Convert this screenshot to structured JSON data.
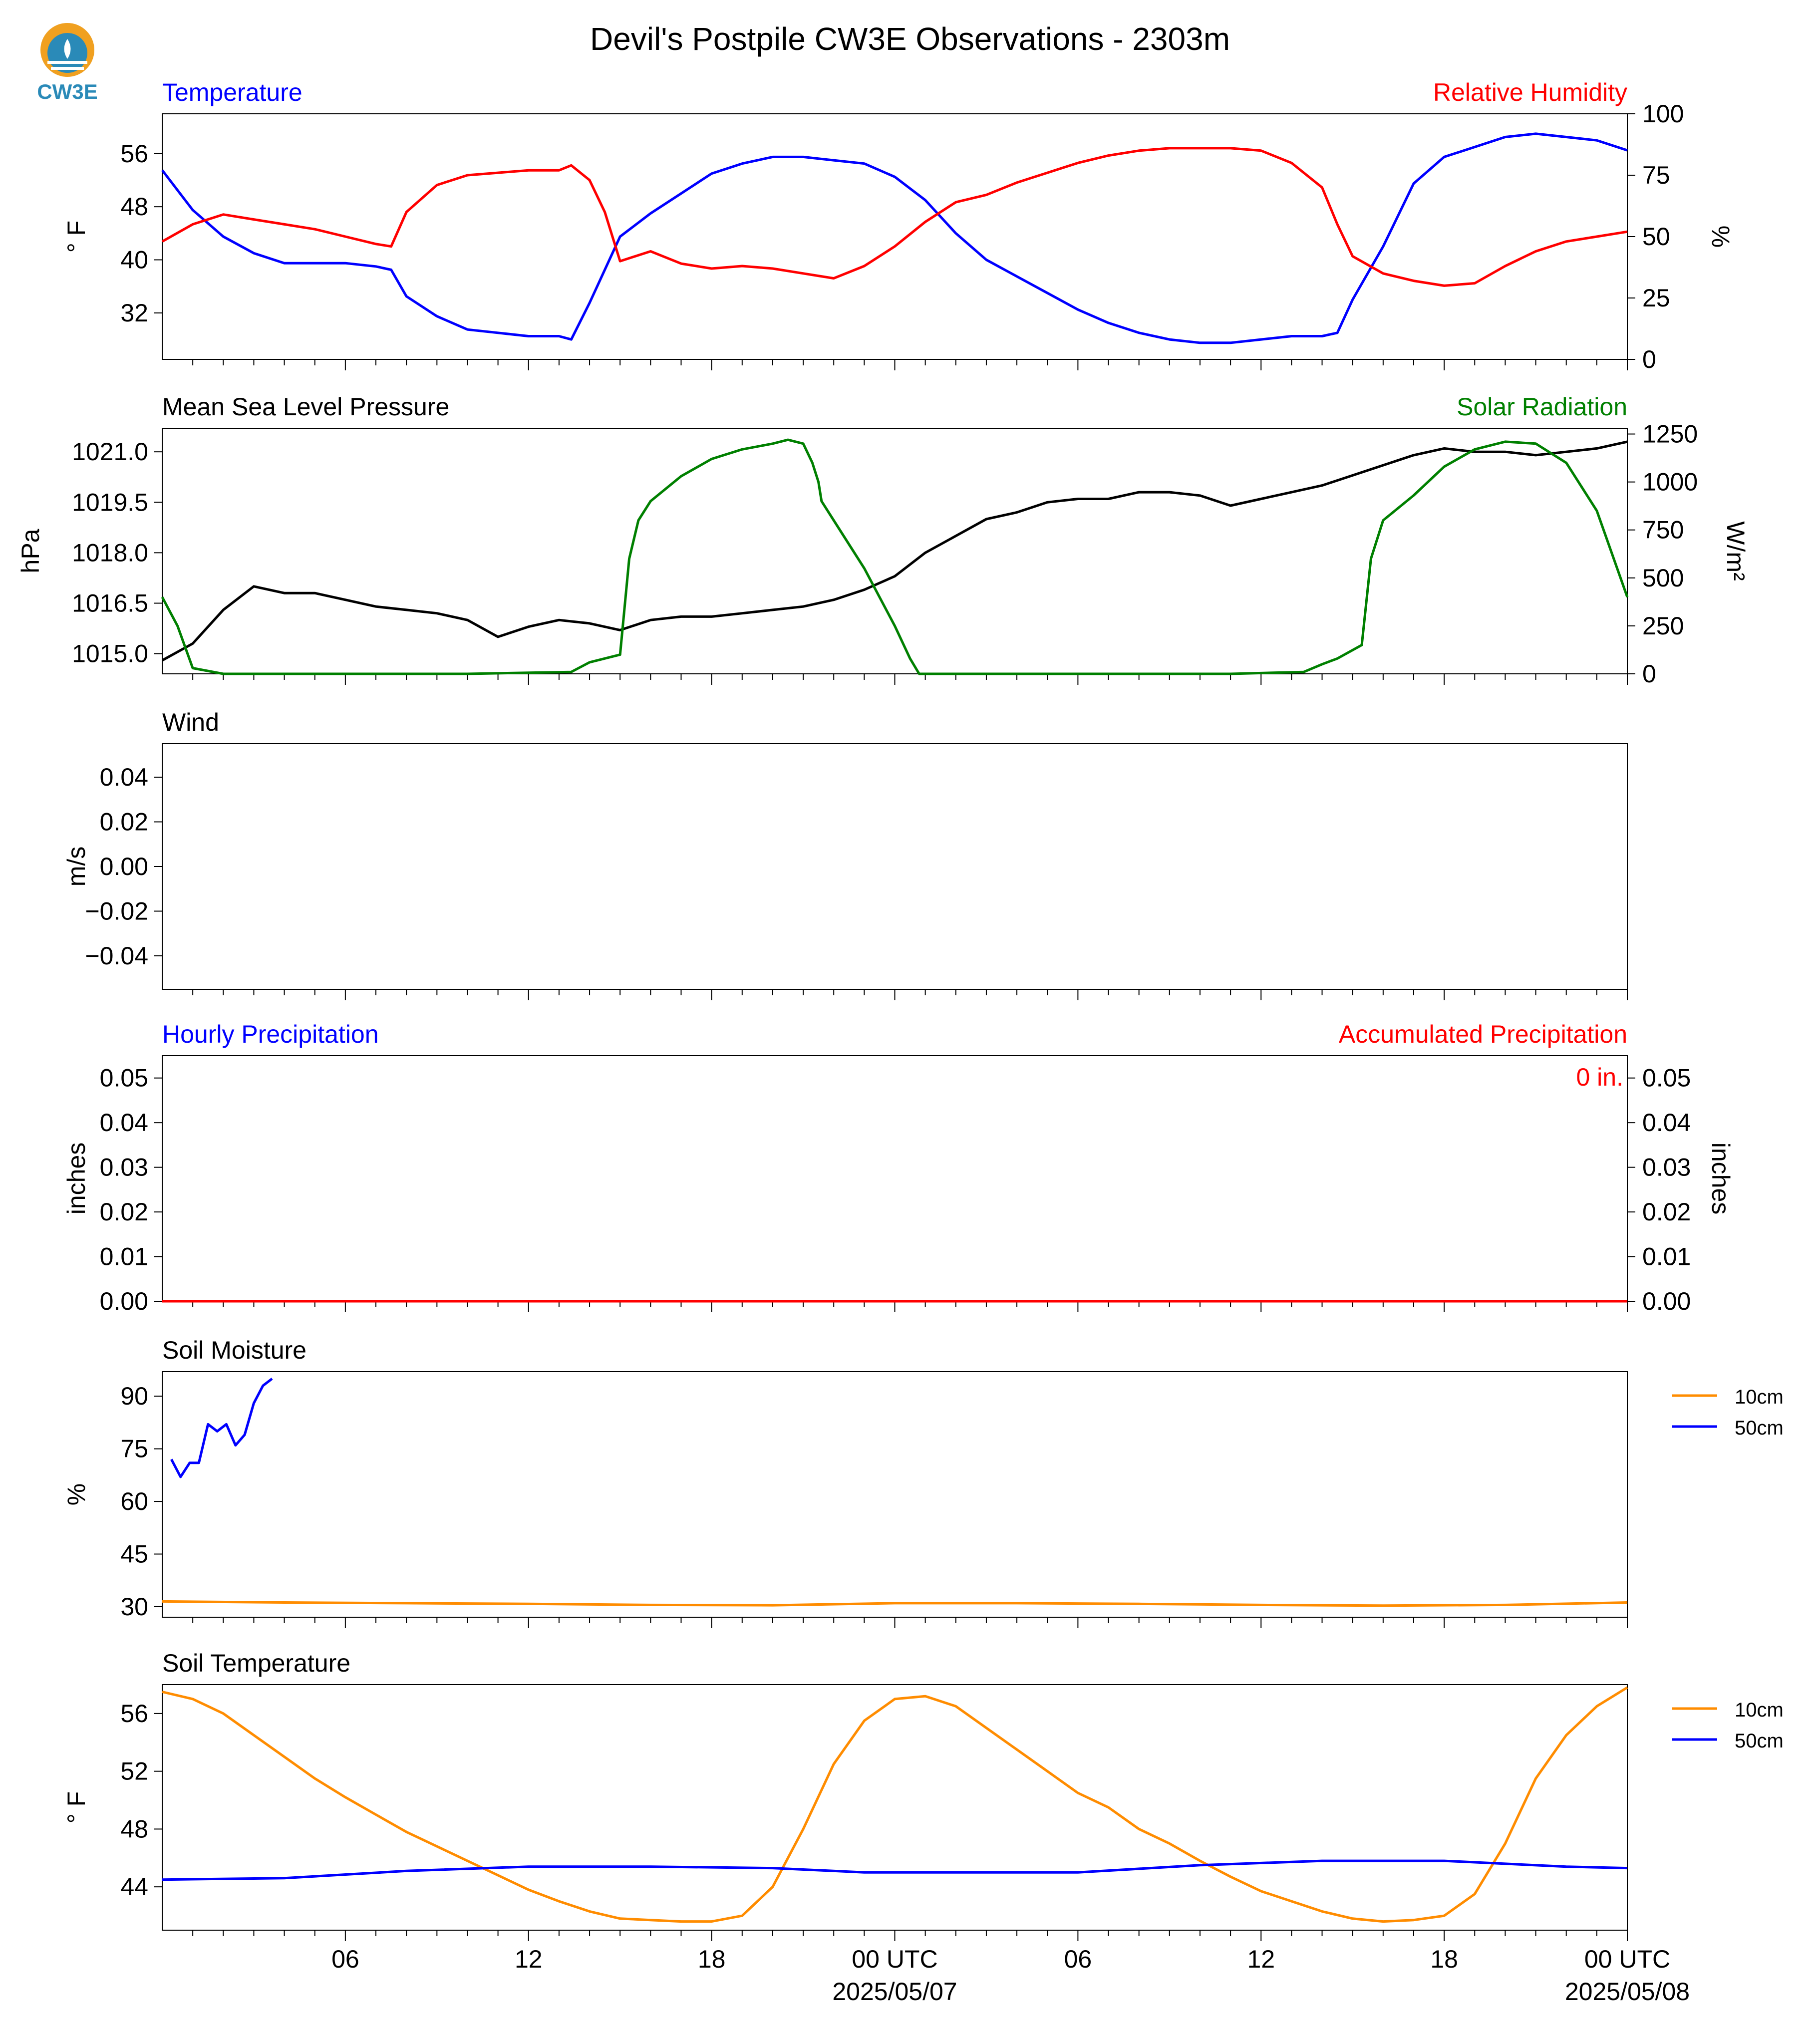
{
  "figure": {
    "title": "Devil's Postpile CW3E Observations - 2303m",
    "logo_text": "CW3E",
    "x_ticks": [
      "06",
      "12",
      "18",
      "00 UTC",
      "06",
      "12",
      "18",
      "00 UTC"
    ],
    "x_dates": [
      "2025/05/07",
      "2025/05/08"
    ]
  },
  "colors": {
    "blue": "#0000ff",
    "red": "#ff0000",
    "green": "#008000",
    "black": "#000000",
    "orange": "#ff8c00"
  },
  "chart_data": [
    {
      "type": "line",
      "title_left": "Temperature",
      "title_right": "Relative Humidity",
      "ylabel": "° F",
      "ylabel_right": "%",
      "ylim": [
        25,
        62
      ],
      "yticks": [
        56,
        48,
        40,
        32
      ],
      "ylim_right": [
        0,
        100
      ],
      "yticks_right": [
        100,
        75,
        50,
        25,
        0
      ],
      "x_hours": [
        0,
        48
      ],
      "series": [
        {
          "name": "Temperature",
          "axis": "left",
          "color": "blue",
          "x": [
            0,
            1,
            2,
            3,
            4,
            5,
            6,
            7,
            7.5,
            8,
            9,
            10,
            11,
            12,
            13,
            13.4,
            14,
            15,
            16,
            17,
            18,
            19,
            20,
            21,
            22,
            23,
            24,
            25,
            26,
            27,
            28,
            29,
            30,
            31,
            32,
            33,
            34,
            35,
            36,
            37,
            38,
            38.5,
            39,
            40,
            41,
            42,
            43,
            44,
            45,
            46,
            47,
            48
          ],
          "y": [
            53.5,
            47.5,
            43.5,
            41,
            39.5,
            39.5,
            39.5,
            39,
            38.5,
            34.5,
            31.5,
            29.5,
            29,
            28.5,
            28.5,
            28,
            33.5,
            43.5,
            47,
            50,
            53,
            54.5,
            55.5,
            55.5,
            55,
            54.5,
            52.5,
            49,
            44,
            40,
            37.5,
            35,
            32.5,
            30.5,
            29,
            28,
            27.5,
            27.5,
            28,
            28.5,
            28.5,
            29,
            34,
            42,
            51.5,
            55.5,
            57,
            58.5,
            59,
            58.5,
            58,
            56.5
          ]
        },
        {
          "name": "Relative Humidity",
          "axis": "right",
          "color": "red",
          "x": [
            0,
            1,
            2,
            3,
            4,
            5,
            6,
            7,
            7.5,
            8,
            9,
            10,
            11,
            12,
            13,
            13.4,
            14,
            14.5,
            15,
            16,
            17,
            18,
            19,
            20,
            21,
            22,
            23,
            24,
            25,
            26,
            27,
            28,
            29,
            30,
            31,
            32,
            33,
            34,
            35,
            36,
            37,
            38,
            38.5,
            39,
            40,
            41,
            42,
            43,
            44,
            45,
            46,
            47,
            48
          ],
          "y": [
            48,
            55,
            59,
            57,
            55,
            53,
            50,
            47,
            46,
            60,
            71,
            75,
            76,
            77,
            77,
            79,
            73,
            60,
            40,
            44,
            39,
            37,
            38,
            37,
            35,
            33,
            38,
            46,
            56,
            64,
            67,
            72,
            76,
            80,
            83,
            85,
            86,
            86,
            86,
            85,
            80,
            70,
            55,
            42,
            35,
            32,
            30,
            31,
            38,
            44,
            48,
            50,
            52
          ]
        }
      ]
    },
    {
      "type": "line",
      "title_left": "Mean Sea Level Pressure",
      "title_right": "Solar Radiation",
      "ylabel": "hPa",
      "ylabel_right": "W/m²",
      "ylim": [
        1014.4,
        1021.7
      ],
      "yticks": [
        "1021.0",
        "1019.5",
        "1018.0",
        "1016.5",
        "1015.0"
      ],
      "ylim_right": [
        0,
        1280
      ],
      "yticks_right": [
        1250,
        1000,
        750,
        500,
        250,
        0
      ],
      "x_hours": [
        0,
        48
      ],
      "series": [
        {
          "name": "Mean Sea Level Pressure",
          "axis": "left",
          "color": "black",
          "x": [
            0,
            1,
            2,
            3,
            4,
            5,
            6,
            7,
            8,
            9,
            10,
            11,
            12,
            13,
            14,
            15,
            16,
            17,
            18,
            19,
            20,
            21,
            22,
            23,
            24,
            25,
            26,
            27,
            28,
            29,
            30,
            31,
            32,
            33,
            34,
            35,
            36,
            37,
            38,
            39,
            40,
            41,
            42,
            43,
            44,
            45,
            46,
            47,
            48
          ],
          "y": [
            1014.8,
            1015.3,
            1016.3,
            1017.0,
            1016.8,
            1016.8,
            1016.6,
            1016.4,
            1016.3,
            1016.2,
            1016.0,
            1015.5,
            1015.8,
            1016.0,
            1015.9,
            1015.7,
            1016.0,
            1016.1,
            1016.1,
            1016.2,
            1016.3,
            1016.4,
            1016.6,
            1016.9,
            1017.3,
            1018.0,
            1018.5,
            1019.0,
            1019.2,
            1019.5,
            1019.6,
            1019.6,
            1019.8,
            1019.8,
            1019.7,
            1019.4,
            1019.6,
            1019.8,
            1020.0,
            1020.3,
            1020.6,
            1020.9,
            1021.1,
            1021.0,
            1021.0,
            1020.9,
            1021.0,
            1021.1,
            1021.3
          ]
        },
        {
          "name": "Solar Radiation",
          "axis": "right",
          "color": "green",
          "x": [
            0,
            0.5,
            1,
            2,
            3,
            6,
            10,
            13.4,
            14,
            15,
            15.3,
            15.6,
            16,
            17,
            18,
            19,
            20,
            20.5,
            21,
            21.3,
            21.5,
            21.6,
            22,
            23,
            24,
            24.5,
            24.8,
            25,
            26,
            30,
            35,
            37.4,
            38,
            38.5,
            39.3,
            39.6,
            40,
            41,
            42,
            43,
            44,
            45,
            46,
            47,
            48
          ],
          "y": [
            400,
            250,
            30,
            0,
            0,
            0,
            0,
            10,
            60,
            100,
            600,
            800,
            900,
            1030,
            1120,
            1170,
            1200,
            1220,
            1200,
            1100,
            1000,
            900,
            800,
            550,
            250,
            80,
            0,
            0,
            0,
            0,
            0,
            10,
            50,
            80,
            150,
            600,
            800,
            930,
            1080,
            1170,
            1210,
            1200,
            1100,
            850,
            400
          ]
        }
      ]
    },
    {
      "type": "line",
      "title_left": "Wind",
      "ylabel": "m/s",
      "ylim": [
        -0.055,
        0.055
      ],
      "yticks": [
        "0.04",
        "0.02",
        "0.00",
        "−0.02",
        "−0.04"
      ],
      "x_hours": [
        0,
        48
      ],
      "series": []
    },
    {
      "type": "line",
      "title_left": "Hourly Precipitation",
      "title_right": "Accumulated Precipitation",
      "ylabel": "inches",
      "ylabel_right": "inches",
      "ylim": [
        0,
        0.055
      ],
      "yticks": [
        "0.05",
        "0.04",
        "0.03",
        "0.02",
        "0.01",
        "0.00"
      ],
      "ylim_right": [
        0,
        0.055
      ],
      "yticks_right": [
        "0.05",
        "0.04",
        "0.03",
        "0.02",
        "0.01",
        "0.00"
      ],
      "annotation": "0 in.",
      "x_hours": [
        0,
        48
      ],
      "series": [
        {
          "name": "Hourly Precipitation",
          "axis": "left",
          "color": "blue",
          "x": [
            0,
            48
          ],
          "y": [
            0,
            0
          ]
        },
        {
          "name": "Accumulated Precipitation",
          "axis": "right",
          "color": "red",
          "x": [
            0,
            48
          ],
          "y": [
            0,
            0
          ]
        }
      ]
    },
    {
      "type": "line",
      "title_left": "Soil Moisture",
      "ylabel": "%",
      "ylim": [
        27,
        97
      ],
      "yticks": [
        90,
        75,
        60,
        45,
        30
      ],
      "legend": [
        "10cm",
        "50cm"
      ],
      "legend_loc": "outside-right",
      "x_hours": [
        0,
        48
      ],
      "series": [
        {
          "name": "10cm",
          "color": "orange",
          "x": [
            0,
            4,
            8,
            12,
            16,
            20,
            24,
            28,
            32,
            36,
            40,
            44,
            48
          ],
          "y": [
            31.5,
            31.2,
            31.0,
            30.8,
            30.5,
            30.4,
            31.0,
            31.0,
            30.8,
            30.5,
            30.3,
            30.5,
            31.2
          ]
        },
        {
          "name": "50cm",
          "color": "blue",
          "x": [
            0.3,
            0.6,
            0.9,
            1.2,
            1.5,
            1.8,
            2.1,
            2.4,
            2.7,
            3.0,
            3.3,
            3.6
          ],
          "y": [
            72,
            67,
            71,
            71,
            82,
            80,
            82,
            76,
            79,
            88,
            93,
            95
          ]
        }
      ]
    },
    {
      "type": "line",
      "title_left": "Soil Temperature",
      "ylabel": "° F",
      "ylim": [
        41,
        58
      ],
      "yticks": [
        56,
        52,
        48,
        44
      ],
      "legend": [
        "10cm",
        "50cm"
      ],
      "legend_loc": "outside-right",
      "x_hours": [
        0,
        48
      ],
      "series": [
        {
          "name": "10cm",
          "color": "orange",
          "x": [
            0,
            1,
            2,
            3,
            4,
            5,
            6,
            7,
            8,
            9,
            10,
            11,
            12,
            13,
            14,
            15,
            16,
            17,
            18,
            19,
            20,
            21,
            22,
            23,
            24,
            25,
            26,
            27,
            28,
            29,
            30,
            31,
            32,
            33,
            34,
            35,
            36,
            37,
            38,
            39,
            40,
            41,
            42,
            43,
            44,
            45,
            46,
            47,
            48
          ],
          "y": [
            57.5,
            57,
            56,
            54.5,
            53,
            51.5,
            50.2,
            49,
            47.8,
            46.8,
            45.8,
            44.8,
            43.8,
            43,
            42.3,
            41.8,
            41.7,
            41.6,
            41.6,
            42,
            44,
            48,
            52.5,
            55.5,
            57,
            57.2,
            56.5,
            55,
            53.5,
            52,
            50.5,
            49.5,
            48,
            47,
            45.8,
            44.7,
            43.7,
            43,
            42.3,
            41.8,
            41.6,
            41.7,
            42,
            43.5,
            47,
            51.5,
            54.5,
            56.5,
            57.8
          ]
        },
        {
          "name": "50cm",
          "color": "blue",
          "x": [
            0,
            4,
            8,
            12,
            16,
            20,
            23,
            26,
            30,
            34,
            38,
            42,
            46,
            48
          ],
          "y": [
            44.5,
            44.6,
            45.1,
            45.4,
            45.4,
            45.3,
            45.0,
            45.0,
            45.0,
            45.5,
            45.8,
            45.8,
            45.4,
            45.3
          ]
        }
      ]
    }
  ]
}
